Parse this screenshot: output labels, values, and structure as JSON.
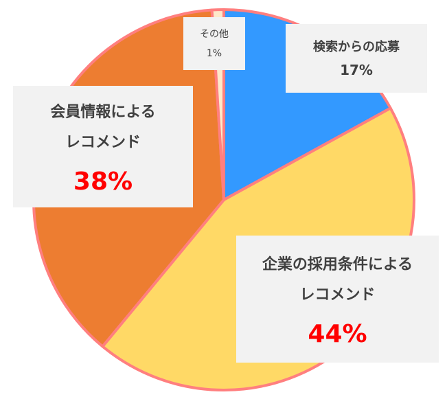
{
  "chart_data": {
    "type": "pie",
    "categories": [
      "検索からの応募",
      "企業の採用条件による\nレコメンド",
      "会員情報による\nレコメンド",
      "その他"
    ],
    "values": [
      17,
      44,
      38,
      1
    ],
    "value_labels": [
      "17%",
      "44%",
      "38%",
      "1%"
    ],
    "colors": [
      "#3399ff",
      "#ffd966",
      "#ed7d31",
      "#fde9c9"
    ]
  }
}
